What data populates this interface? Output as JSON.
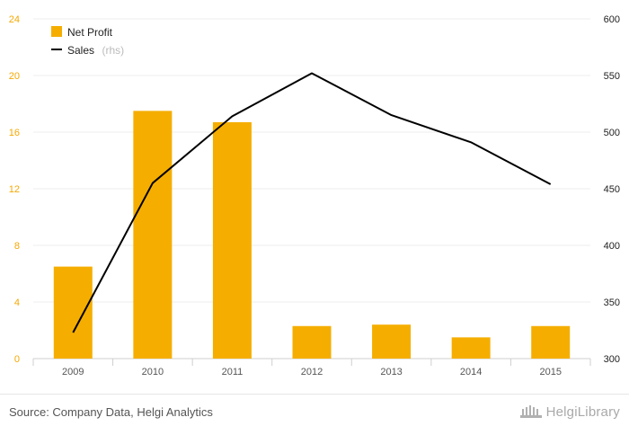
{
  "chart_data": {
    "type": "bar",
    "categories": [
      "2009",
      "2010",
      "2011",
      "2012",
      "2013",
      "2014",
      "2015"
    ],
    "series": [
      {
        "name": "Net Profit",
        "type": "bar",
        "axis": "left",
        "color": "#f5ae00",
        "values": [
          6.5,
          17.5,
          16.7,
          2.3,
          2.4,
          1.5,
          2.3
        ]
      },
      {
        "name": "Sales",
        "type": "line",
        "axis": "right",
        "color": "#000000",
        "values": [
          323,
          455,
          514,
          552,
          515,
          491,
          454
        ]
      }
    ],
    "left_axis": {
      "ticks": [
        "0",
        "4",
        "8",
        "12",
        "16",
        "20",
        "24"
      ],
      "range": [
        0,
        24
      ],
      "color": "#f5a800"
    },
    "right_axis": {
      "ticks": [
        "300",
        "350",
        "400",
        "450",
        "500",
        "550",
        "600"
      ],
      "range": [
        300,
        600
      ],
      "color": "#222222"
    },
    "grid": true,
    "legend": {
      "placement": "top-left",
      "items": [
        {
          "label": "Net Profit",
          "suffix": ""
        },
        {
          "label": "Sales",
          "suffix": "(rhs)"
        }
      ]
    }
  },
  "footer": {
    "source": "Source: Company Data, Helgi Analytics",
    "logo_text": "HelgiLibrary",
    "logo_icon": "library-building-icon"
  }
}
